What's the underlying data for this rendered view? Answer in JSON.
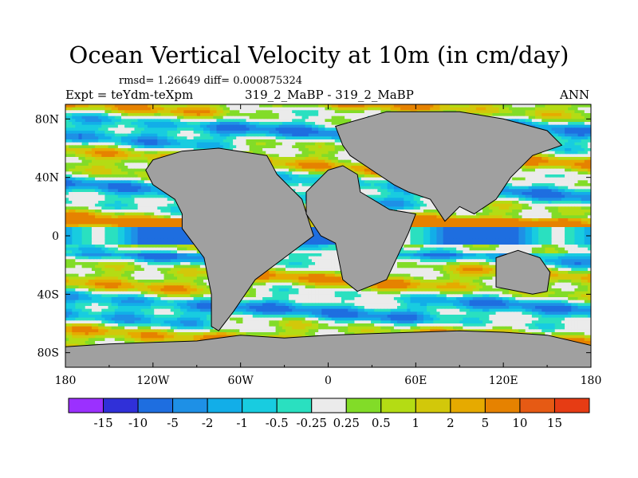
{
  "header": {
    "title": "Ocean Vertical Velocity at 10m (in cm/day)",
    "stats": "rmsd= 1.26649  diff= 0.000875324",
    "expt": "Expt = teYdm-teXpm",
    "cases": "319_2_MaBP - 319_2_MaBP",
    "season": "ANN"
  },
  "colors": {
    "land": "#a0a0a0",
    "frame": "#000000"
  },
  "chart_data": {
    "type": "heatmap",
    "title": "Ocean Vertical Velocity at 10m (in cm/day)",
    "xlim": [
      -180,
      180
    ],
    "ylim": [
      -90,
      90
    ],
    "x_ticks": [
      {
        "value": -180,
        "label": "180"
      },
      {
        "value": -120,
        "label": "120W"
      },
      {
        "value": -60,
        "label": "60W"
      },
      {
        "value": 0,
        "label": "0"
      },
      {
        "value": 60,
        "label": "60E"
      },
      {
        "value": 120,
        "label": "120E"
      },
      {
        "value": 180,
        "label": "180"
      }
    ],
    "y_ticks": [
      {
        "value": 80,
        "label": "80N"
      },
      {
        "value": 40,
        "label": "40N"
      },
      {
        "value": 0,
        "label": "0"
      },
      {
        "value": -40,
        "label": "40S"
      },
      {
        "value": -80,
        "label": "80S"
      }
    ],
    "colorbar": {
      "boundaries": [
        "-15",
        "-10",
        "-5",
        "-2",
        "-1",
        "-0.5",
        "-0.25",
        "0.25",
        "0.5",
        "1",
        "2",
        "5",
        "10",
        "15"
      ],
      "colors": [
        "#9b30ff",
        "#3030d8",
        "#1e6ee0",
        "#1e90e6",
        "#12aee8",
        "#18cce0",
        "#2ae0c0",
        "#ebebeb",
        "#82dc28",
        "#b4dc14",
        "#d2c80a",
        "#e6aa00",
        "#e68200",
        "#e65a14",
        "#e63c14"
      ]
    },
    "land_polygons": [
      {
        "name": "Americas",
        "points": [
          [
            -42,
            55
          ],
          [
            -35,
            42
          ],
          [
            -18,
            25
          ],
          [
            -10,
            0
          ],
          [
            -30,
            -15
          ],
          [
            -50,
            -30
          ],
          [
            -65,
            -52
          ],
          [
            -75,
            -65
          ],
          [
            -80,
            -62
          ],
          [
            -80,
            -40
          ],
          [
            -85,
            -15
          ],
          [
            -100,
            5
          ],
          [
            -100,
            15
          ],
          [
            -105,
            25
          ],
          [
            -120,
            35
          ],
          [
            -125,
            45
          ],
          [
            -120,
            52
          ],
          [
            -100,
            58
          ],
          [
            -75,
            60
          ]
        ]
      },
      {
        "name": "Africa",
        "points": [
          [
            0,
            45
          ],
          [
            10,
            48
          ],
          [
            20,
            42
          ],
          [
            22,
            30
          ],
          [
            42,
            18
          ],
          [
            60,
            15
          ],
          [
            55,
            2
          ],
          [
            40,
            -30
          ],
          [
            20,
            -38
          ],
          [
            10,
            -30
          ],
          [
            5,
            -5
          ],
          [
            -5,
            0
          ],
          [
            -15,
            15
          ],
          [
            -15,
            30
          ],
          [
            -5,
            40
          ]
        ]
      },
      {
        "name": "Eurasia",
        "points": [
          [
            5,
            75
          ],
          [
            40,
            85
          ],
          [
            90,
            85
          ],
          [
            120,
            80
          ],
          [
            150,
            72
          ],
          [
            160,
            62
          ],
          [
            140,
            55
          ],
          [
            125,
            40
          ],
          [
            115,
            25
          ],
          [
            100,
            15
          ],
          [
            90,
            20
          ],
          [
            80,
            10
          ],
          [
            70,
            25
          ],
          [
            55,
            30
          ],
          [
            45,
            35
          ],
          [
            30,
            45
          ],
          [
            15,
            55
          ],
          [
            10,
            62
          ]
        ]
      },
      {
        "name": "Australia",
        "points": [
          [
            115,
            -15
          ],
          [
            130,
            -10
          ],
          [
            145,
            -15
          ],
          [
            152,
            -25
          ],
          [
            150,
            -38
          ],
          [
            140,
            -40
          ],
          [
            115,
            -35
          ]
        ]
      },
      {
        "name": "Antarctica",
        "points": [
          [
            -180,
            -76
          ],
          [
            -150,
            -74
          ],
          [
            -120,
            -73
          ],
          [
            -90,
            -72
          ],
          [
            -60,
            -68
          ],
          [
            -30,
            -70
          ],
          [
            0,
            -68
          ],
          [
            30,
            -67
          ],
          [
            60,
            -66
          ],
          [
            90,
            -65
          ],
          [
            120,
            -66
          ],
          [
            150,
            -68
          ],
          [
            180,
            -75
          ],
          [
            180,
            -90
          ],
          [
            -180,
            -90
          ]
        ]
      }
    ]
  }
}
